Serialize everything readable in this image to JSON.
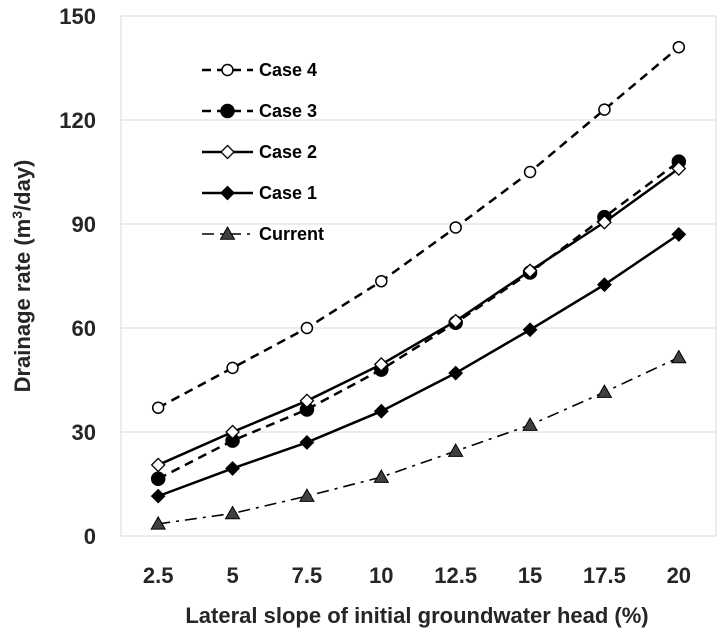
{
  "chart_data": {
    "type": "line",
    "categories": [
      "2.5",
      "5",
      "7.5",
      "10",
      "12.5",
      "15",
      "17.5",
      "20"
    ],
    "xlabel": "Lateral slope of initial groundwater head (%)",
    "ylabel_main": "Drainage rate (m",
    "ylabel_sup": "3",
    "ylabel_end": "/day)",
    "ylim": [
      0,
      150
    ],
    "yticks": [
      "0",
      "30",
      "60",
      "90",
      "120",
      "150"
    ],
    "grid": "horizontal",
    "legend_position": "top-left",
    "series": [
      {
        "name": "Case 4",
        "values": [
          37,
          48.5,
          60,
          73.5,
          89,
          105,
          123,
          141
        ],
        "line": "dashed",
        "marker": "open-circle",
        "color": "#000000"
      },
      {
        "name": "Case 3",
        "values": [
          16.5,
          27.5,
          36.5,
          48,
          61.5,
          76,
          92,
          108
        ],
        "line": "dashed",
        "marker": "filled-circle",
        "color": "#000000"
      },
      {
        "name": "Case 2",
        "values": [
          20.5,
          30,
          39,
          49.5,
          62,
          76.5,
          90.5,
          106
        ],
        "line": "solid",
        "marker": "open-diamond",
        "color": "#000000"
      },
      {
        "name": "Case 1",
        "values": [
          11.5,
          19.5,
          27,
          36,
          47,
          59.5,
          72.5,
          87
        ],
        "line": "solid",
        "marker": "filled-diamond",
        "color": "#000000"
      },
      {
        "name": "Current",
        "values": [
          3.5,
          6.5,
          11.5,
          17,
          24.5,
          32,
          41.5,
          51.5
        ],
        "line": "dash-dot",
        "marker": "filled-triangle",
        "color": "#000000"
      }
    ]
  }
}
